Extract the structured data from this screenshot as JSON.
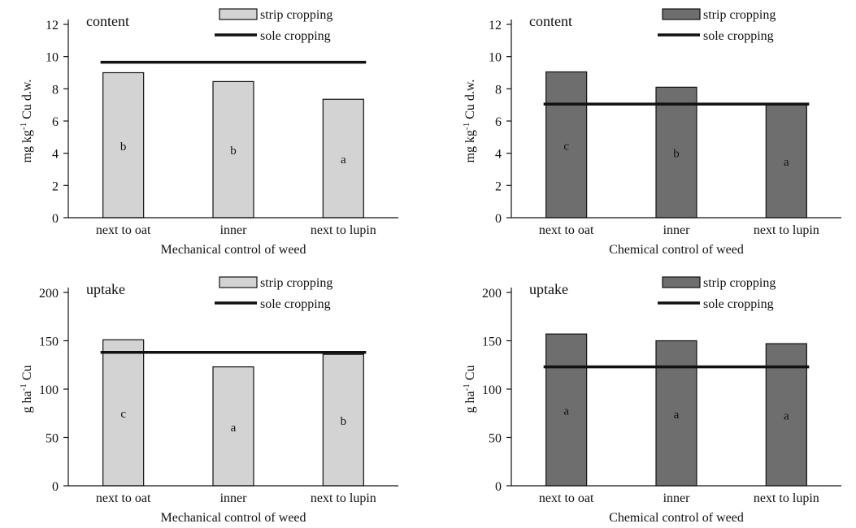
{
  "chart_data": [
    {
      "type": "bar",
      "title": "content",
      "xlabel": "Mechanical control of weed",
      "ylabel": "mg kg-1 Cu d.w.",
      "ylabel_parts": [
        "mg kg",
        "-1",
        " Cu d.w."
      ],
      "categories": [
        "next to oat",
        "inner",
        "next to lupin"
      ],
      "series": [
        {
          "name": "strip cropping",
          "values": [
            9.0,
            8.45,
            7.35
          ],
          "letters": [
            "b",
            "b",
            "a"
          ],
          "color": "#d3d3d3"
        },
        {
          "name": "sole cropping",
          "type": "line",
          "value": 9.65,
          "color": "#111111"
        }
      ],
      "ylim": [
        0,
        12
      ],
      "yticks": [
        0,
        2,
        4,
        6,
        8,
        10,
        12
      ],
      "legend": "top-right",
      "grid": false
    },
    {
      "type": "bar",
      "title": "content",
      "xlabel": "Chemical control of weed",
      "ylabel": "mg kg-1 Cu d.w.",
      "ylabel_parts": [
        "mg kg",
        "-1",
        " Cu d.w."
      ],
      "categories": [
        "next to oat",
        "inner",
        "next to lupin"
      ],
      "series": [
        {
          "name": "strip cropping",
          "values": [
            9.05,
            8.1,
            7.05
          ],
          "letters": [
            "c",
            "b",
            "a"
          ],
          "color": "#6e6e6e"
        },
        {
          "name": "sole cropping",
          "type": "line",
          "value": 7.05,
          "color": "#111111"
        }
      ],
      "ylim": [
        0,
        12
      ],
      "yticks": [
        0,
        2,
        4,
        6,
        8,
        10,
        12
      ],
      "legend": "top-right",
      "grid": false
    },
    {
      "type": "bar",
      "title": "uptake",
      "xlabel": "Mechanical control of weed",
      "ylabel": "g ha-1 Cu",
      "ylabel_parts": [
        "g ha",
        "-1",
        " Cu"
      ],
      "categories": [
        "next to oat",
        "inner",
        "next to lupin"
      ],
      "series": [
        {
          "name": "strip cropping",
          "values": [
            151,
            123,
            136
          ],
          "letters": [
            "c",
            "a",
            "b"
          ],
          "color": "#d3d3d3"
        },
        {
          "name": "sole cropping",
          "type": "line",
          "value": 138,
          "color": "#111111"
        }
      ],
      "ylim": [
        0,
        200
      ],
      "yticks": [
        0,
        50,
        100,
        150,
        200
      ],
      "legend": "top-right",
      "grid": false
    },
    {
      "type": "bar",
      "title": "uptake",
      "xlabel": "Chemical control of weed",
      "ylabel": "g ha-1 Cu",
      "ylabel_parts": [
        "g ha",
        "-1",
        " Cu"
      ],
      "categories": [
        "next to oat",
        "inner",
        "next to lupin"
      ],
      "series": [
        {
          "name": "strip cropping",
          "values": [
            157,
            150,
            147
          ],
          "letters": [
            "a",
            "a",
            "a"
          ],
          "color": "#6e6e6e"
        },
        {
          "name": "sole cropping",
          "type": "line",
          "value": 123,
          "color": "#111111"
        }
      ],
      "ylim": [
        0,
        200
      ],
      "yticks": [
        0,
        50,
        100,
        150,
        200
      ],
      "legend": "top-right",
      "grid": false
    }
  ]
}
